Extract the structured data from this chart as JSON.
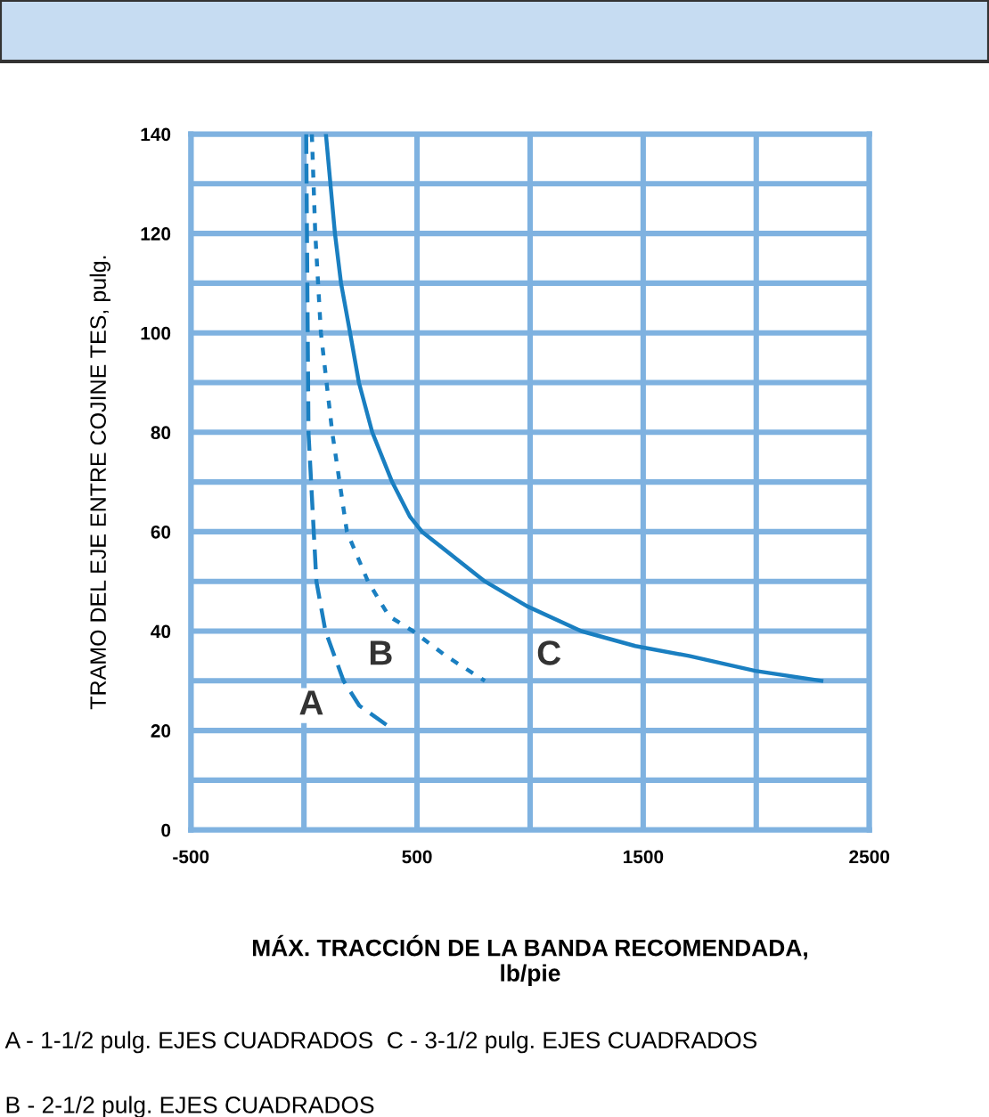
{
  "chart_data": {
    "type": "line",
    "xlabel": "MÁX. TRACCIÓN DE LA BANDA RECOMENDADA,\nlb/pie",
    "ylabel": "TRAMO DEL EJE ENTRE COJINE TES, pulg.",
    "xlim": [
      -500,
      2500
    ],
    "ylim": [
      0,
      140
    ],
    "xticks": [
      -500,
      {
        "value": 0,
        "label": null
      },
      500,
      {
        "value": 1000,
        "label": null
      },
      1500,
      {
        "value": 2000,
        "label": null
      },
      2500
    ],
    "yticks": [
      0,
      {
        "value": 10,
        "label": null
      },
      20,
      {
        "value": 30,
        "label": null
      },
      40,
      {
        "value": 50,
        "label": null
      },
      60,
      {
        "value": 70,
        "label": null
      },
      80,
      {
        "value": 90,
        "label": null
      },
      100,
      {
        "value": 110,
        "label": null
      },
      120,
      {
        "value": 130,
        "label": null
      },
      140
    ],
    "grid": true,
    "marker": "none",
    "series": [
      {
        "name": "A",
        "color": "#1a7fc1",
        "line_style": "dashed",
        "x": [
          10,
          15,
          20,
          55,
          95,
          175,
          245,
          400
        ],
        "values": [
          140,
          110,
          80,
          50,
          40,
          30,
          25,
          20
        ]
      },
      {
        "name": "B",
        "color": "#1a7fc1",
        "line_style": "dotted",
        "x": [
          35,
          50,
          75,
          125,
          190,
          283,
          376,
          482,
          628,
          800
        ],
        "values": [
          140,
          120,
          100,
          80,
          60,
          50,
          43,
          40,
          35,
          30
        ]
      },
      {
        "name": "C",
        "color": "#1a7fc1",
        "line_style": "solid",
        "x": [
          97,
          137,
          164,
          204,
          243,
          302,
          390,
          469,
          522,
          800,
          987,
          1226,
          1465,
          1703,
          1995,
          2288
        ],
        "values": [
          140,
          120,
          110,
          100,
          90,
          80,
          70,
          63,
          60,
          50,
          45,
          40,
          37,
          35,
          32,
          30
        ]
      }
    ],
    "annotations": [
      "A - 1-1/2 pulg. EJES CUADRADOS  C - 3-1/2 pulg. EJES CUADRADOS",
      "B - 2-1/2 pulg. EJES CUADRADOS"
    ]
  }
}
